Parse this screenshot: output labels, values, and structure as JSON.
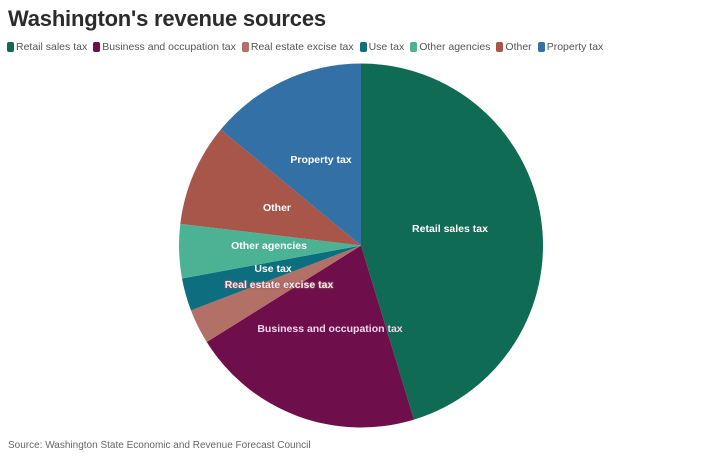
{
  "title": "Washington's revenue sources",
  "source": "Source: Washington State Economic and Revenue Forecast Council",
  "legend": [
    {
      "label": "Retail sales tax",
      "color": "#0f6b53"
    },
    {
      "label": "Business and occupation tax",
      "color": "#6e0f4c"
    },
    {
      "label": "Real estate excise tax",
      "color": "#b27066"
    },
    {
      "label": "Use tax",
      "color": "#0d6e80"
    },
    {
      "label": "Other agencies",
      "color": "#4bb393"
    },
    {
      "label": "Other",
      "color": "#a8564a"
    },
    {
      "label": "Property tax",
      "color": "#3270a5"
    }
  ],
  "chart_data": {
    "type": "pie",
    "title": "Washington's revenue sources",
    "categories": [
      "Retail sales tax",
      "Business and occupation tax",
      "Real estate excise tax",
      "Use tax",
      "Other agencies",
      "Other",
      "Property tax"
    ],
    "values": [
      45.3,
      20.8,
      3.1,
      2.9,
      4.8,
      9.1,
      14.0
    ],
    "unit": "percent (estimated)",
    "colors": [
      "#0f6b53",
      "#6e0f4c",
      "#b27066",
      "#0d6e80",
      "#4bb393",
      "#a8564a",
      "#3270a5"
    ],
    "start_angle": "12 o'clock, clockwise",
    "legend_position": "top",
    "source": "Source: Washington State Economic and Revenue Forecast Council"
  },
  "labels": {
    "retail": "Retail sales tax",
    "bo": "Business and occupation tax",
    "real_estate": "Real estate excise tax",
    "use": "Use tax",
    "other_agencies": "Other agencies",
    "other": "Other",
    "property": "Property tax"
  }
}
